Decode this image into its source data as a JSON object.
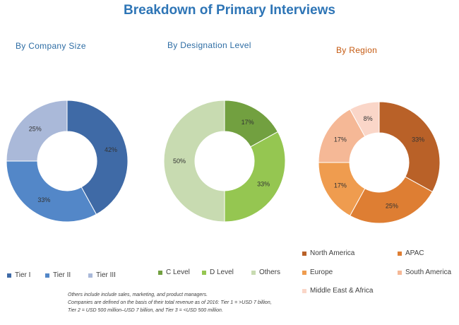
{
  "title": "Breakdown of Primary Interviews",
  "chart_data": [
    {
      "type": "pie",
      "title": "By Company Size",
      "categories": [
        "Tier I",
        "Tier II",
        "Tier III"
      ],
      "values": [
        42,
        33,
        25
      ],
      "labels": [
        "42%",
        "33%",
        "25%"
      ],
      "colors": [
        "#3f6aa6",
        "#5387c8",
        "#aab9d9"
      ],
      "legend_placement": "bottom"
    },
    {
      "type": "pie",
      "title": "By Designation Level",
      "categories": [
        "C Level",
        "D Level",
        "Others"
      ],
      "values": [
        17,
        33,
        50
      ],
      "labels": [
        "17%",
        "33%",
        "50%"
      ],
      "colors": [
        "#72a040",
        "#95c651",
        "#c8dbb1"
      ],
      "legend_placement": "bottom"
    },
    {
      "type": "pie",
      "title": "By Region",
      "categories": [
        "North America",
        "APAC",
        "Europe",
        "South America",
        "Middle East & Africa"
      ],
      "values": [
        33,
        25,
        17,
        17,
        8
      ],
      "labels": [
        "33%",
        "25%",
        "17%",
        "17%",
        "8%"
      ],
      "colors": [
        "#b96128",
        "#de7e33",
        "#ef9c4f",
        "#f5b896",
        "#fad6c8"
      ],
      "legend_placement": "bottom"
    }
  ],
  "footnote": [
    "Others include include sales, marketing, and product managers.",
    "Companies are defined on the basis of their total revenue as of 2016: Tier 1 = >USD 7 billion,",
    "Tier 2 = USD 500 million–USD 7 billion, and Tier 3 = <USD 500 million."
  ]
}
